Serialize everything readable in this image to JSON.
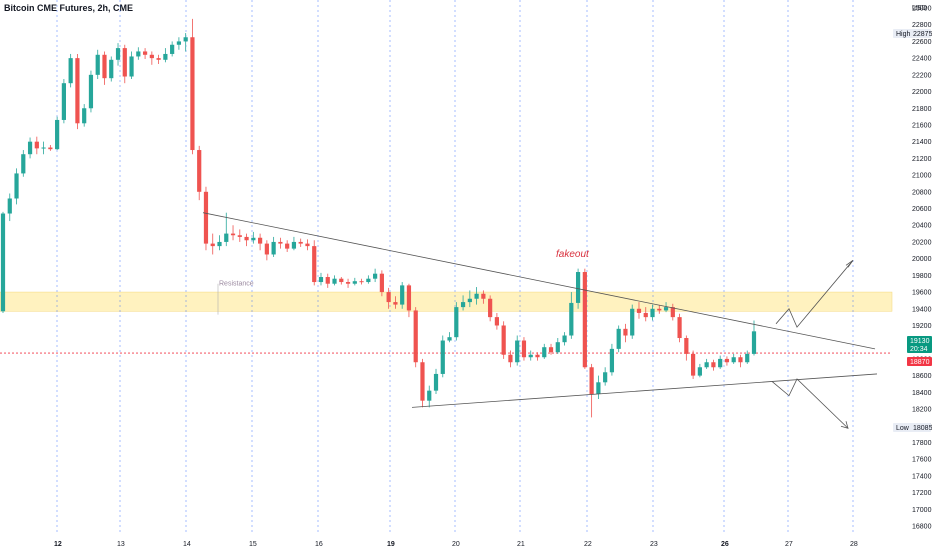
{
  "title": "Bitcoin CME Futures, 2h, CME",
  "currency": "USD",
  "colors": {
    "up": "#26a69a",
    "down": "#ef5350",
    "grid": "#2962ff",
    "zone": "#fff2bf",
    "line": "#555555",
    "price_badge": "#089981",
    "red_badge": "#f23645",
    "label_badge": "#e9edf5"
  },
  "price_axis": {
    "labels": [
      "23000",
      "22800",
      "22600",
      "22400",
      "22200",
      "22000",
      "21800",
      "21600",
      "21400",
      "21200",
      "21000",
      "20800",
      "20600",
      "20400",
      "20200",
      "20000",
      "19800",
      "19600",
      "19400",
      "19200",
      "19000",
      "18800",
      "18600",
      "18400",
      "18200",
      "18000",
      "17800",
      "17600",
      "17400",
      "17200",
      "17000",
      "16800"
    ],
    "high_label": "High",
    "high_value": "22875",
    "low_label": "Low",
    "low_value": "18085",
    "last_price": "19130",
    "countdown": "20:34",
    "marker_price": "18870"
  },
  "time_axis": {
    "labels": [
      {
        "text": "12",
        "bold": true
      },
      {
        "text": "13",
        "bold": false
      },
      {
        "text": "14",
        "bold": false
      },
      {
        "text": "15",
        "bold": false
      },
      {
        "text": "16",
        "bold": false
      },
      {
        "text": "19",
        "bold": true
      },
      {
        "text": "20",
        "bold": false
      },
      {
        "text": "21",
        "bold": false
      },
      {
        "text": "22",
        "bold": false
      },
      {
        "text": "23",
        "bold": false
      },
      {
        "text": "26",
        "bold": true
      },
      {
        "text": "27",
        "bold": false
      },
      {
        "text": "28",
        "bold": false
      }
    ]
  },
  "annotations": {
    "resistance": "Resistance",
    "fakeout": "fakeout"
  },
  "chart_data": {
    "type": "candlestick",
    "ylim": [
      16700,
      23100
    ],
    "resistance_zone": [
      19370,
      19600
    ],
    "dotted_price_line": 18870,
    "trendlines": {
      "upper": {
        "from": {
          "day": "14",
          "price": 20550
        },
        "to": {
          "day": "28",
          "price": 18920
        }
      },
      "lower": {
        "from": {
          "day": "19",
          "price": 18220
        },
        "to": {
          "day": "28",
          "price": 18620
        }
      }
    },
    "projection_paths": {
      "up": [
        19220,
        19400,
        19180,
        19980
      ],
      "down": [
        18530,
        18360,
        18560,
        17970
      ]
    },
    "candles": [
      [
        19370,
        20540,
        19350,
        20560
      ],
      [
        20540,
        20720,
        20450,
        20780
      ],
      [
        20720,
        21020,
        20650,
        21080
      ],
      [
        21020,
        21250,
        20980,
        21300
      ],
      [
        21250,
        21400,
        21200,
        21450
      ],
      [
        21400,
        21320,
        21250,
        21460
      ],
      [
        21320,
        21330,
        21250,
        21400
      ],
      [
        21330,
        21310,
        21290,
        21360
      ],
      [
        21310,
        21660,
        21300,
        21700
      ],
      [
        21660,
        22100,
        21620,
        22150
      ],
      [
        22100,
        22400,
        22050,
        22450
      ],
      [
        22400,
        21620,
        21550,
        22450
      ],
      [
        21620,
        21800,
        21580,
        21850
      ],
      [
        21800,
        22200,
        21750,
        22250
      ],
      [
        22200,
        22440,
        22150,
        22500
      ],
      [
        22440,
        22160,
        22080,
        22480
      ],
      [
        22160,
        22380,
        22120,
        22420
      ],
      [
        22380,
        22520,
        22310,
        22580
      ],
      [
        22520,
        22180,
        22100,
        22560
      ],
      [
        22180,
        22420,
        22150,
        22480
      ],
      [
        22420,
        22480,
        22380,
        22530
      ],
      [
        22480,
        22440,
        22390,
        22520
      ],
      [
        22440,
        22400,
        22320,
        22480
      ],
      [
        22400,
        22380,
        22330,
        22440
      ],
      [
        22380,
        22450,
        22350,
        22520
      ],
      [
        22450,
        22560,
        22420,
        22600
      ],
      [
        22560,
        22600,
        22500,
        22650
      ],
      [
        22600,
        22650,
        22480,
        22700
      ],
      [
        22650,
        21300,
        21250,
        22870
      ],
      [
        21300,
        20800,
        20700,
        21350
      ],
      [
        20800,
        20180,
        20100,
        20860
      ],
      [
        20180,
        20150,
        20050,
        20300
      ],
      [
        20150,
        20200,
        20100,
        20280
      ],
      [
        20200,
        20300,
        20150,
        20550
      ],
      [
        20300,
        20280,
        20220,
        20400
      ],
      [
        20280,
        20260,
        20200,
        20350
      ],
      [
        20260,
        20220,
        20150,
        20300
      ],
      [
        20220,
        20250,
        20180,
        20320
      ],
      [
        20250,
        20180,
        20100,
        20300
      ],
      [
        20180,
        20050,
        19980,
        20220
      ],
      [
        20050,
        20200,
        20020,
        20260
      ],
      [
        20200,
        20180,
        20120,
        20250
      ],
      [
        20180,
        20120,
        20080,
        20220
      ],
      [
        20120,
        20200,
        20100,
        20260
      ],
      [
        20200,
        20180,
        20140,
        20240
      ],
      [
        20180,
        20150,
        20100,
        20230
      ],
      [
        20150,
        19720,
        19680,
        20220
      ],
      [
        19720,
        19780,
        19680,
        19830
      ],
      [
        19780,
        19700,
        19650,
        19820
      ],
      [
        19700,
        19760,
        19680,
        19800
      ],
      [
        19760,
        19720,
        19690,
        19780
      ],
      [
        19720,
        19700,
        19650,
        19760
      ],
      [
        19700,
        19730,
        19680,
        19770
      ],
      [
        19730,
        19720,
        19690,
        19760
      ],
      [
        19720,
        19760,
        19700,
        19800
      ],
      [
        19760,
        19820,
        19720,
        19880
      ],
      [
        19820,
        19600,
        19550,
        19860
      ],
      [
        19600,
        19480,
        19400,
        19650
      ],
      [
        19480,
        19450,
        19400,
        19550
      ],
      [
        19450,
        19680,
        19400,
        19720
      ],
      [
        19680,
        19380,
        19300,
        19700
      ],
      [
        19380,
        18760,
        18700,
        19420
      ],
      [
        18760,
        18300,
        18220,
        18800
      ],
      [
        18300,
        18420,
        18220,
        18480
      ],
      [
        18420,
        18620,
        18380,
        18680
      ],
      [
        18620,
        19020,
        18580,
        19080
      ],
      [
        19020,
        19060,
        19000,
        19120
      ],
      [
        19060,
        19420,
        19020,
        19480
      ],
      [
        19420,
        19480,
        19380,
        19560
      ],
      [
        19480,
        19520,
        19420,
        19620
      ],
      [
        19520,
        19580,
        19450,
        19660
      ],
      [
        19580,
        19520,
        19460,
        19620
      ],
      [
        19520,
        19300,
        19250,
        19560
      ],
      [
        19300,
        19200,
        19150,
        19350
      ],
      [
        19200,
        18850,
        18800,
        19250
      ],
      [
        18850,
        18760,
        18700,
        18900
      ],
      [
        18760,
        19020,
        18720,
        19080
      ],
      [
        19020,
        18820,
        18780,
        19060
      ],
      [
        18820,
        18850,
        18780,
        18900
      ],
      [
        18850,
        18820,
        18780,
        18880
      ],
      [
        18820,
        18940,
        18800,
        18980
      ],
      [
        18940,
        18880,
        18850,
        18980
      ],
      [
        18880,
        19000,
        18860,
        19050
      ],
      [
        19000,
        19080,
        18960,
        19120
      ],
      [
        19080,
        19470,
        19040,
        19600
      ],
      [
        19470,
        19840,
        19400,
        19880
      ],
      [
        19840,
        18700,
        18680,
        19880
      ],
      [
        18700,
        18380,
        18100,
        18740
      ],
      [
        18380,
        18520,
        18320,
        18600
      ],
      [
        18520,
        18640,
        18480,
        18700
      ],
      [
        18640,
        18920,
        18600,
        18980
      ],
      [
        18920,
        19160,
        18880,
        19200
      ],
      [
        19160,
        19080,
        19000,
        19220
      ],
      [
        19080,
        19400,
        19040,
        19450
      ],
      [
        19400,
        19350,
        19280,
        19480
      ],
      [
        19350,
        19300,
        19250,
        19420
      ],
      [
        19300,
        19400,
        19260,
        19450
      ],
      [
        19400,
        19380,
        19340,
        19440
      ],
      [
        19380,
        19420,
        19360,
        19480
      ],
      [
        19420,
        19300,
        19260,
        19460
      ],
      [
        19300,
        19050,
        19000,
        19340
      ],
      [
        19050,
        18860,
        18780,
        19080
      ],
      [
        18860,
        18600,
        18560,
        18900
      ],
      [
        18600,
        18700,
        18580,
        18740
      ],
      [
        18700,
        18760,
        18680,
        18800
      ],
      [
        18760,
        18700,
        18660,
        18790
      ],
      [
        18700,
        18800,
        18680,
        18840
      ],
      [
        18800,
        18760,
        18720,
        18830
      ],
      [
        18760,
        18820,
        18740,
        18860
      ],
      [
        18820,
        18760,
        18700,
        18850
      ],
      [
        18760,
        18860,
        18740,
        18900
      ],
      [
        18860,
        19130,
        18840,
        19260
      ]
    ]
  }
}
